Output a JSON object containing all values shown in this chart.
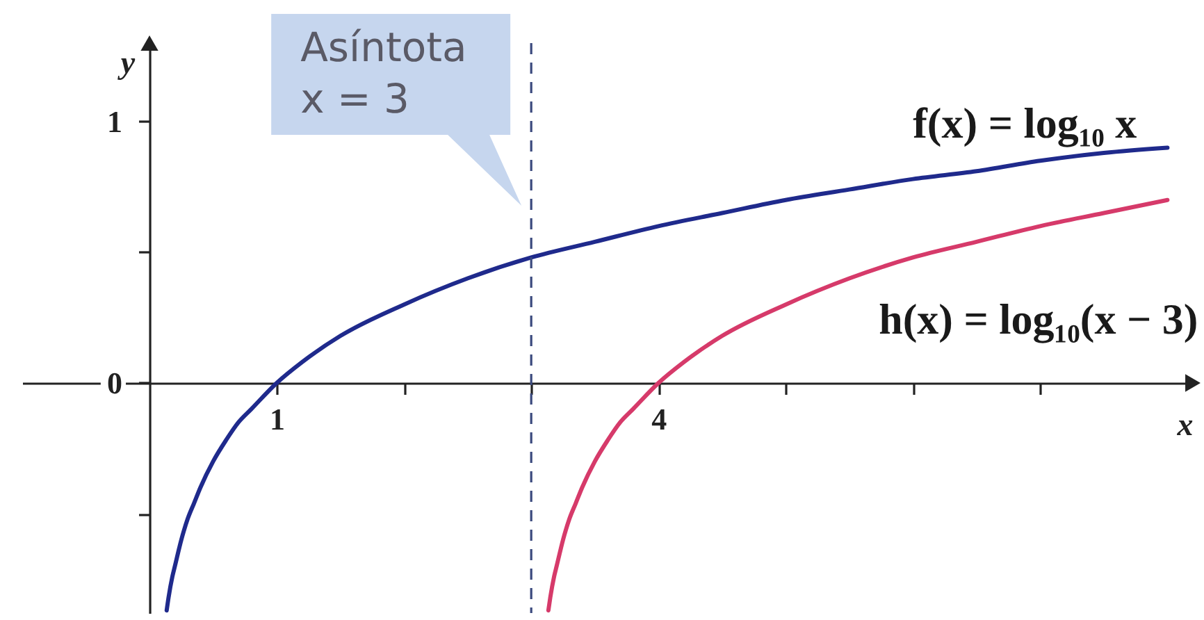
{
  "chart_data": {
    "type": "line",
    "xlabel": "x",
    "ylabel": "y",
    "xlim": [
      -1,
      8.2
    ],
    "ylim": [
      -0.88,
      1.3
    ],
    "xticks": [
      1,
      {
        "value": 2,
        "label": null
      },
      {
        "value": 3,
        "label": null
      },
      4,
      {
        "value": 5,
        "label": null
      },
      {
        "value": 6,
        "label": null
      },
      {
        "value": 7,
        "label": null
      }
    ],
    "yticks": [
      {
        "value": -0.5,
        "label": null
      },
      0,
      {
        "value": 0.5,
        "label": null
      },
      1
    ],
    "grid": false,
    "marker": "none",
    "line_style": "solid",
    "series": [
      {
        "name": "f(x) = log₁₀ x",
        "color": "#1f2a8c",
        "x": [
          0.135,
          0.15,
          0.18,
          0.2,
          0.25,
          0.3,
          0.35,
          0.4,
          0.5,
          0.6,
          0.7,
          0.8,
          1,
          1.2,
          1.5,
          2,
          2.5,
          3,
          3.5,
          4,
          4.5,
          5,
          5.5,
          6,
          6.5,
          7,
          7.5,
          8
        ],
        "values": [
          -0.87,
          -0.82,
          -0.74,
          -0.7,
          -0.6,
          -0.52,
          -0.46,
          -0.4,
          -0.3,
          -0.22,
          -0.15,
          -0.1,
          0,
          0.08,
          0.18,
          0.3,
          0.4,
          0.48,
          0.54,
          0.6,
          0.65,
          0.7,
          0.74,
          0.78,
          0.81,
          0.85,
          0.88,
          0.9
        ]
      },
      {
        "name": "h(x) = log₁₀(x − 3)",
        "color": "#d63a6a",
        "x": [
          3.135,
          3.15,
          3.18,
          3.2,
          3.25,
          3.3,
          3.35,
          3.4,
          3.5,
          3.6,
          3.7,
          3.8,
          4,
          4.2,
          4.5,
          5,
          5.5,
          6,
          6.5,
          7,
          7.5,
          8
        ],
        "values": [
          -0.87,
          -0.82,
          -0.74,
          -0.7,
          -0.6,
          -0.52,
          -0.46,
          -0.4,
          -0.3,
          -0.22,
          -0.15,
          -0.1,
          0,
          0.08,
          0.18,
          0.3,
          0.4,
          0.48,
          0.54,
          0.6,
          0.65,
          0.7
        ]
      }
    ],
    "ref_lines": [
      {
        "axis": "x",
        "value": 3,
        "label": "Asíntota\nx = 3",
        "line_style": "dashed",
        "color": "#3b4a7e"
      }
    ]
  }
}
